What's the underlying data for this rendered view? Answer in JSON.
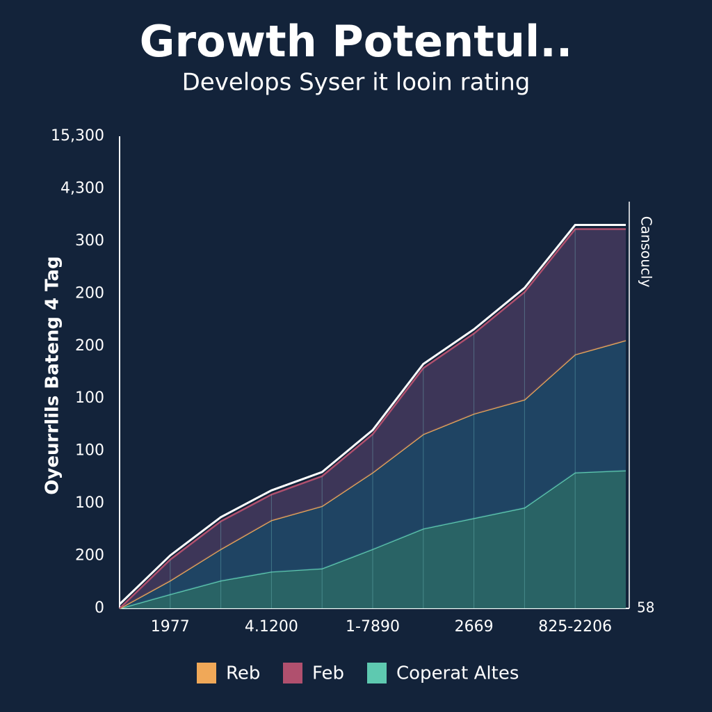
{
  "chart_data": {
    "type": "stacked_area",
    "title": "Growth Potentul..",
    "subtitle": "Develops Syser it looin rating",
    "y_axis_title": "Oyeurrlils Bateng 4 Tag",
    "right_axis_title": "Cansoucly",
    "right_axis_label": "58",
    "y_axis_labels": [
      "0",
      "200",
      "100",
      "100",
      "100",
      "200",
      "200",
      "300",
      "4,300",
      "15,300"
    ],
    "ylim": [
      0,
      9
    ],
    "categories": [
      null,
      "1977",
      null,
      "4.1200",
      null,
      "1-7890",
      null,
      "2669",
      null,
      "825-2206",
      null
    ],
    "series": [
      {
        "name": "Coperat Altes",
        "color": "#5ec9b0",
        "values": [
          0,
          0.27,
          0.53,
          0.7,
          0.76,
          1.13,
          1.52,
          1.72,
          1.92,
          2.59,
          2.63
        ]
      },
      {
        "name": "Reb",
        "color": "#f0a858",
        "values": [
          0,
          0.26,
          0.6,
          0.98,
          1.19,
          1.46,
          1.8,
          1.99,
          2.06,
          2.25,
          2.48
        ]
      },
      {
        "name": "Feb",
        "color": "#b0506e",
        "values": [
          0,
          0.4,
          0.53,
          0.49,
          0.57,
          0.73,
          1.26,
          1.53,
          2.05,
          2.39,
          2.12
        ]
      }
    ]
  }
}
